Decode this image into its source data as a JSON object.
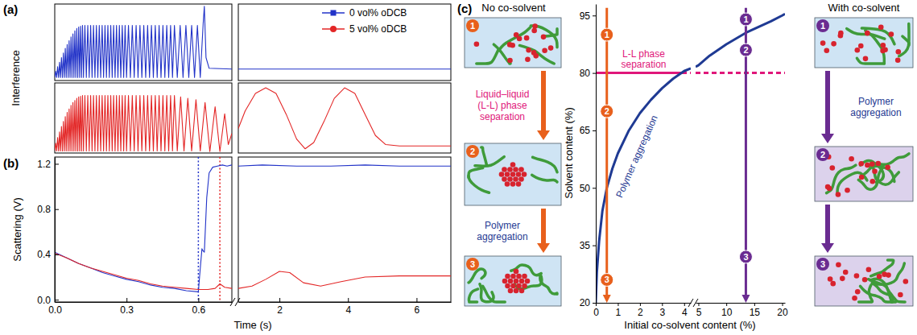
{
  "chart_data": [
    {
      "type": "line",
      "panel_label": "(a)",
      "y_label": "Interference",
      "xlim": [
        0,
        0.74
      ],
      "ylim": [
        0,
        1
      ],
      "tick_labels": false,
      "series": [
        {
          "color": "#2233c8",
          "x": [
            0,
            0.004,
            0.008,
            0.012,
            0.016,
            0.02,
            0.024,
            0.028,
            0.032,
            0.036,
            0.04,
            0.044,
            0.048,
            0.052,
            0.056,
            0.06,
            0.064,
            0.068,
            0.072,
            0.076,
            0.08,
            0.084,
            0.088,
            0.092,
            0.096,
            0.1,
            0.104,
            0.108,
            0.112,
            0.116,
            0.12,
            0.126,
            0.132,
            0.138,
            0.144,
            0.15,
            0.156,
            0.162,
            0.168,
            0.174,
            0.18,
            0.186,
            0.192,
            0.198,
            0.204,
            0.21,
            0.216,
            0.222,
            0.228,
            0.234,
            0.24,
            0.246,
            0.252,
            0.258,
            0.264,
            0.27,
            0.276,
            0.282,
            0.288,
            0.294,
            0.3,
            0.308,
            0.316,
            0.324,
            0.332,
            0.34,
            0.348,
            0.356,
            0.364,
            0.372,
            0.38,
            0.388,
            0.396,
            0.404,
            0.412,
            0.42,
            0.428,
            0.436,
            0.444,
            0.452,
            0.46,
            0.468,
            0.476,
            0.484,
            0.492,
            0.5,
            0.512,
            0.524,
            0.536,
            0.548,
            0.56,
            0.572,
            0.584,
            0.596,
            0.608,
            0.62,
            0.625,
            0.632,
            0.645,
            0.74
          ],
          "values": [
            0.04,
            0.12,
            0.04,
            0.18,
            0.04,
            0.24,
            0.04,
            0.3,
            0.04,
            0.36,
            0.04,
            0.42,
            0.04,
            0.47,
            0.04,
            0.52,
            0.04,
            0.57,
            0.04,
            0.61,
            0.04,
            0.65,
            0.04,
            0.68,
            0.04,
            0.7,
            0.04,
            0.71,
            0.04,
            0.72,
            0.04,
            0.72,
            0.04,
            0.72,
            0.04,
            0.72,
            0.04,
            0.72,
            0.04,
            0.72,
            0.04,
            0.72,
            0.04,
            0.72,
            0.04,
            0.72,
            0.04,
            0.72,
            0.04,
            0.72,
            0.04,
            0.72,
            0.04,
            0.72,
            0.04,
            0.72,
            0.04,
            0.72,
            0.04,
            0.72,
            0.04,
            0.72,
            0.04,
            0.72,
            0.04,
            0.72,
            0.04,
            0.72,
            0.04,
            0.72,
            0.04,
            0.72,
            0.04,
            0.72,
            0.04,
            0.72,
            0.04,
            0.72,
            0.04,
            0.72,
            0.04,
            0.72,
            0.04,
            0.72,
            0.04,
            0.72,
            0.04,
            0.72,
            0.04,
            0.72,
            0.04,
            0.72,
            0.04,
            0.72,
            0.04,
            0.74,
            0.97,
            0.3,
            0.16,
            0.15
          ]
        }
      ]
    },
    {
      "type": "line",
      "xlim": [
        0.8,
        7
      ],
      "ylim": [
        0,
        1
      ],
      "tick_labels": false,
      "series": [
        {
          "color": "#2233c8",
          "x": [
            0.8,
            2,
            4,
            7
          ],
          "values": [
            0.15,
            0.15,
            0.15,
            0.15
          ]
        }
      ]
    },
    {
      "type": "line",
      "xlim": [
        0,
        0.74
      ],
      "ylim": [
        0,
        1
      ],
      "tick_labels": false,
      "series": [
        {
          "color": "#e32626",
          "x": [
            0,
            0.004,
            0.008,
            0.012,
            0.016,
            0.02,
            0.024,
            0.028,
            0.032,
            0.036,
            0.04,
            0.044,
            0.048,
            0.052,
            0.056,
            0.06,
            0.064,
            0.068,
            0.072,
            0.076,
            0.08,
            0.084,
            0.088,
            0.092,
            0.096,
            0.1,
            0.104,
            0.108,
            0.112,
            0.116,
            0.12,
            0.126,
            0.132,
            0.138,
            0.144,
            0.15,
            0.156,
            0.162,
            0.168,
            0.174,
            0.18,
            0.186,
            0.192,
            0.198,
            0.204,
            0.21,
            0.216,
            0.222,
            0.228,
            0.234,
            0.24,
            0.246,
            0.252,
            0.258,
            0.264,
            0.27,
            0.276,
            0.282,
            0.288,
            0.294,
            0.3,
            0.308,
            0.316,
            0.324,
            0.332,
            0.34,
            0.348,
            0.356,
            0.364,
            0.372,
            0.38,
            0.388,
            0.396,
            0.404,
            0.412,
            0.42,
            0.428,
            0.436,
            0.444,
            0.452,
            0.46,
            0.468,
            0.476,
            0.484,
            0.492,
            0.5,
            0.512,
            0.526,
            0.54,
            0.556,
            0.572,
            0.59,
            0.608,
            0.628,
            0.648,
            0.67,
            0.69,
            0.71,
            0.725,
            0.74
          ],
          "values": [
            0.03,
            0.14,
            0.03,
            0.22,
            0.03,
            0.3,
            0.03,
            0.38,
            0.03,
            0.45,
            0.03,
            0.52,
            0.03,
            0.58,
            0.03,
            0.63,
            0.03,
            0.68,
            0.03,
            0.72,
            0.03,
            0.75,
            0.03,
            0.78,
            0.03,
            0.8,
            0.03,
            0.81,
            0.03,
            0.82,
            0.03,
            0.82,
            0.03,
            0.82,
            0.03,
            0.82,
            0.03,
            0.82,
            0.03,
            0.82,
            0.03,
            0.82,
            0.03,
            0.82,
            0.03,
            0.82,
            0.03,
            0.82,
            0.03,
            0.82,
            0.03,
            0.82,
            0.03,
            0.82,
            0.03,
            0.82,
            0.03,
            0.82,
            0.03,
            0.82,
            0.03,
            0.82,
            0.03,
            0.82,
            0.03,
            0.82,
            0.03,
            0.82,
            0.03,
            0.82,
            0.03,
            0.82,
            0.03,
            0.82,
            0.03,
            0.82,
            0.03,
            0.82,
            0.03,
            0.82,
            0.03,
            0.82,
            0.03,
            0.82,
            0.03,
            0.82,
            0.03,
            0.8,
            0.03,
            0.78,
            0.03,
            0.76,
            0.03,
            0.72,
            0.02,
            0.66,
            0.02,
            0.56,
            0.12,
            0.28
          ]
        }
      ]
    },
    {
      "type": "line",
      "xlim": [
        0.8,
        7
      ],
      "ylim": [
        0,
        1
      ],
      "tick_labels": false,
      "series": [
        {
          "color": "#e32626",
          "x": [
            0.8,
            1,
            1.3,
            1.6,
            1.9,
            2.2,
            2.5,
            2.75,
            3,
            3.3,
            3.6,
            3.9,
            4.2,
            4.5,
            4.8,
            5.1,
            5.5,
            6,
            7
          ],
          "values": [
            0.35,
            0.6,
            0.85,
            0.93,
            0.85,
            0.55,
            0.2,
            0.06,
            0.15,
            0.45,
            0.78,
            0.93,
            0.85,
            0.55,
            0.25,
            0.12,
            0.1,
            0.1,
            0.1
          ]
        }
      ]
    },
    {
      "type": "line",
      "panel_label": "(b)",
      "y_label": "Scattering (V)",
      "x_label": "Time (s)",
      "xlim": [
        0,
        0.74
      ],
      "ylim": [
        -0.02,
        1.26
      ],
      "xticks": [
        {
          "value": 0,
          "label": "0.0"
        },
        {
          "value": 0.3,
          "label": "0.3"
        },
        {
          "value": 0.6,
          "label": "0.6"
        }
      ],
      "yticks": [
        {
          "value": 0,
          "label": "0.0"
        },
        0.4,
        0.8,
        1.2
      ],
      "vlines": [
        {
          "x": 0.6,
          "color": "#2233c8",
          "line_style": "dotted"
        },
        {
          "x": 0.69,
          "color": "#e32626",
          "line_style": "dotted"
        }
      ],
      "series": [
        {
          "color": "#2233c8",
          "x": [
            0,
            0.05,
            0.1,
            0.15,
            0.2,
            0.25,
            0.3,
            0.35,
            0.4,
            0.45,
            0.5,
            0.55,
            0.6,
            0.605,
            0.615,
            0.62,
            0.625,
            0.635,
            0.645,
            0.66,
            0.68,
            0.7,
            0.72,
            0.74
          ],
          "values": [
            0.42,
            0.37,
            0.32,
            0.28,
            0.24,
            0.21,
            0.18,
            0.16,
            0.13,
            0.11,
            0.1,
            0.08,
            0.07,
            0.2,
            0.45,
            0.43,
            0.42,
            0.9,
            1.12,
            1.17,
            1.18,
            1.19,
            1.18,
            1.19
          ]
        },
        {
          "color": "#e32626",
          "x": [
            0,
            0.05,
            0.1,
            0.15,
            0.2,
            0.25,
            0.3,
            0.35,
            0.4,
            0.45,
            0.5,
            0.55,
            0.6,
            0.64,
            0.67,
            0.69,
            0.71,
            0.74
          ],
          "values": [
            0.41,
            0.37,
            0.32,
            0.28,
            0.25,
            0.22,
            0.19,
            0.17,
            0.14,
            0.12,
            0.11,
            0.1,
            0.09,
            0.09,
            0.1,
            0.14,
            0.11,
            0.1
          ]
        }
      ]
    },
    {
      "type": "line",
      "xlim": [
        0.8,
        7
      ],
      "ylim": [
        -0.02,
        1.26
      ],
      "xticks": [
        2,
        4,
        6
      ],
      "tick_labels": "x",
      "legend": "above",
      "series": [
        {
          "name": "0 vol% oDCB",
          "color": "#2233c8",
          "marker": "square",
          "x": [
            0.8,
            1.5,
            2.5,
            3.5,
            4.5,
            5.5,
            6.5,
            7
          ],
          "values": [
            1.18,
            1.19,
            1.18,
            1.18,
            1.19,
            1.18,
            1.18,
            1.18
          ]
        },
        {
          "name": "5 vol% oDCB",
          "color": "#e32626",
          "marker": "circle",
          "x": [
            0.8,
            1.2,
            1.6,
            2,
            2.3,
            2.7,
            3.2,
            3.8,
            4.5,
            5.5,
            7
          ],
          "values": [
            0.1,
            0.12,
            0.18,
            0.25,
            0.24,
            0.15,
            0.12,
            0.16,
            0.2,
            0.21,
            0.21
          ]
        }
      ]
    },
    {
      "type": "line",
      "x_label": "Initial co-solvent content (%)",
      "y_label": "Solvent content (%)",
      "xlim": [
        0,
        4.3
      ],
      "ylim": [
        20,
        98
      ],
      "xticks": [
        0,
        1,
        2,
        3,
        4
      ],
      "yticks": [
        20,
        35,
        50,
        65,
        80,
        95
      ],
      "hlines": [
        {
          "y": 80,
          "x": [
            0,
            3.9
          ],
          "line_style": "solid",
          "color": "#e0177a",
          "label": "L-L phase separation"
        },
        {
          "y": 80,
          "x": [
            3.9,
            4.3
          ],
          "line_style": "dashed",
          "color": "#e0177a"
        }
      ],
      "arrows": [
        {
          "x": 0.5,
          "y": [
            97,
            20
          ],
          "color": "#e8601c",
          "steps": [
            {
              "y": 90,
              "label": "1"
            },
            {
              "y": 70,
              "label": "2"
            },
            {
              "y": 26,
              "label": "3"
            }
          ]
        }
      ],
      "series": [
        {
          "name": "Polymer aggregation",
          "color": "#1f3a93",
          "x": [
            0,
            0.05,
            0.15,
            0.3,
            0.5,
            0.75,
            1,
            1.5,
            2,
            2.5,
            3,
            3.5,
            4,
            4.3
          ],
          "values": [
            20,
            28,
            36,
            44,
            50,
            55,
            59,
            65,
            69.5,
            73,
            76,
            78.5,
            80.5,
            81.2
          ]
        }
      ]
    },
    {
      "type": "line",
      "xlim": [
        4.5,
        20.5
      ],
      "ylim": [
        20,
        98
      ],
      "xticks": [
        5,
        10,
        15,
        20
      ],
      "tick_labels": "x",
      "hlines": [
        {
          "y": 80,
          "x": [
            4.5,
            20.5
          ],
          "line_style": "dashed",
          "color": "#e0177a"
        }
      ],
      "arrows": [
        {
          "x": 13.5,
          "y": [
            97,
            20
          ],
          "color": "#6a2c91",
          "steps": [
            {
              "y": 94,
              "label": "1"
            },
            {
              "y": 86,
              "label": "2"
            },
            {
              "y": 32,
              "label": "3"
            }
          ]
        }
      ],
      "series": [
        {
          "color": "#1f3a93",
          "x": [
            4.5,
            5,
            7,
            10,
            13.5,
            15,
            18,
            20,
            20.5
          ],
          "values": [
            81.6,
            82,
            84.5,
            87.5,
            90.5,
            91.5,
            93.5,
            95,
            95.4
          ]
        }
      ]
    }
  ],
  "schematic": {
    "panel_label": "(c)",
    "columns": [
      {
        "title": "No co-solvent",
        "steps": [
          "1",
          "2",
          "3"
        ],
        "transitions": [
          {
            "label": "Liquid–liquid (L-L) phase separation",
            "color": "#e0177a"
          },
          {
            "label": "Polymer aggregation",
            "color": "#1f3a93"
          }
        ]
      },
      {
        "title": "With co-solvent",
        "steps": [
          "1",
          "2",
          "3"
        ],
        "transitions": [
          {
            "label": "Polymer aggregation",
            "color": "#1f3a93"
          }
        ]
      }
    ]
  }
}
